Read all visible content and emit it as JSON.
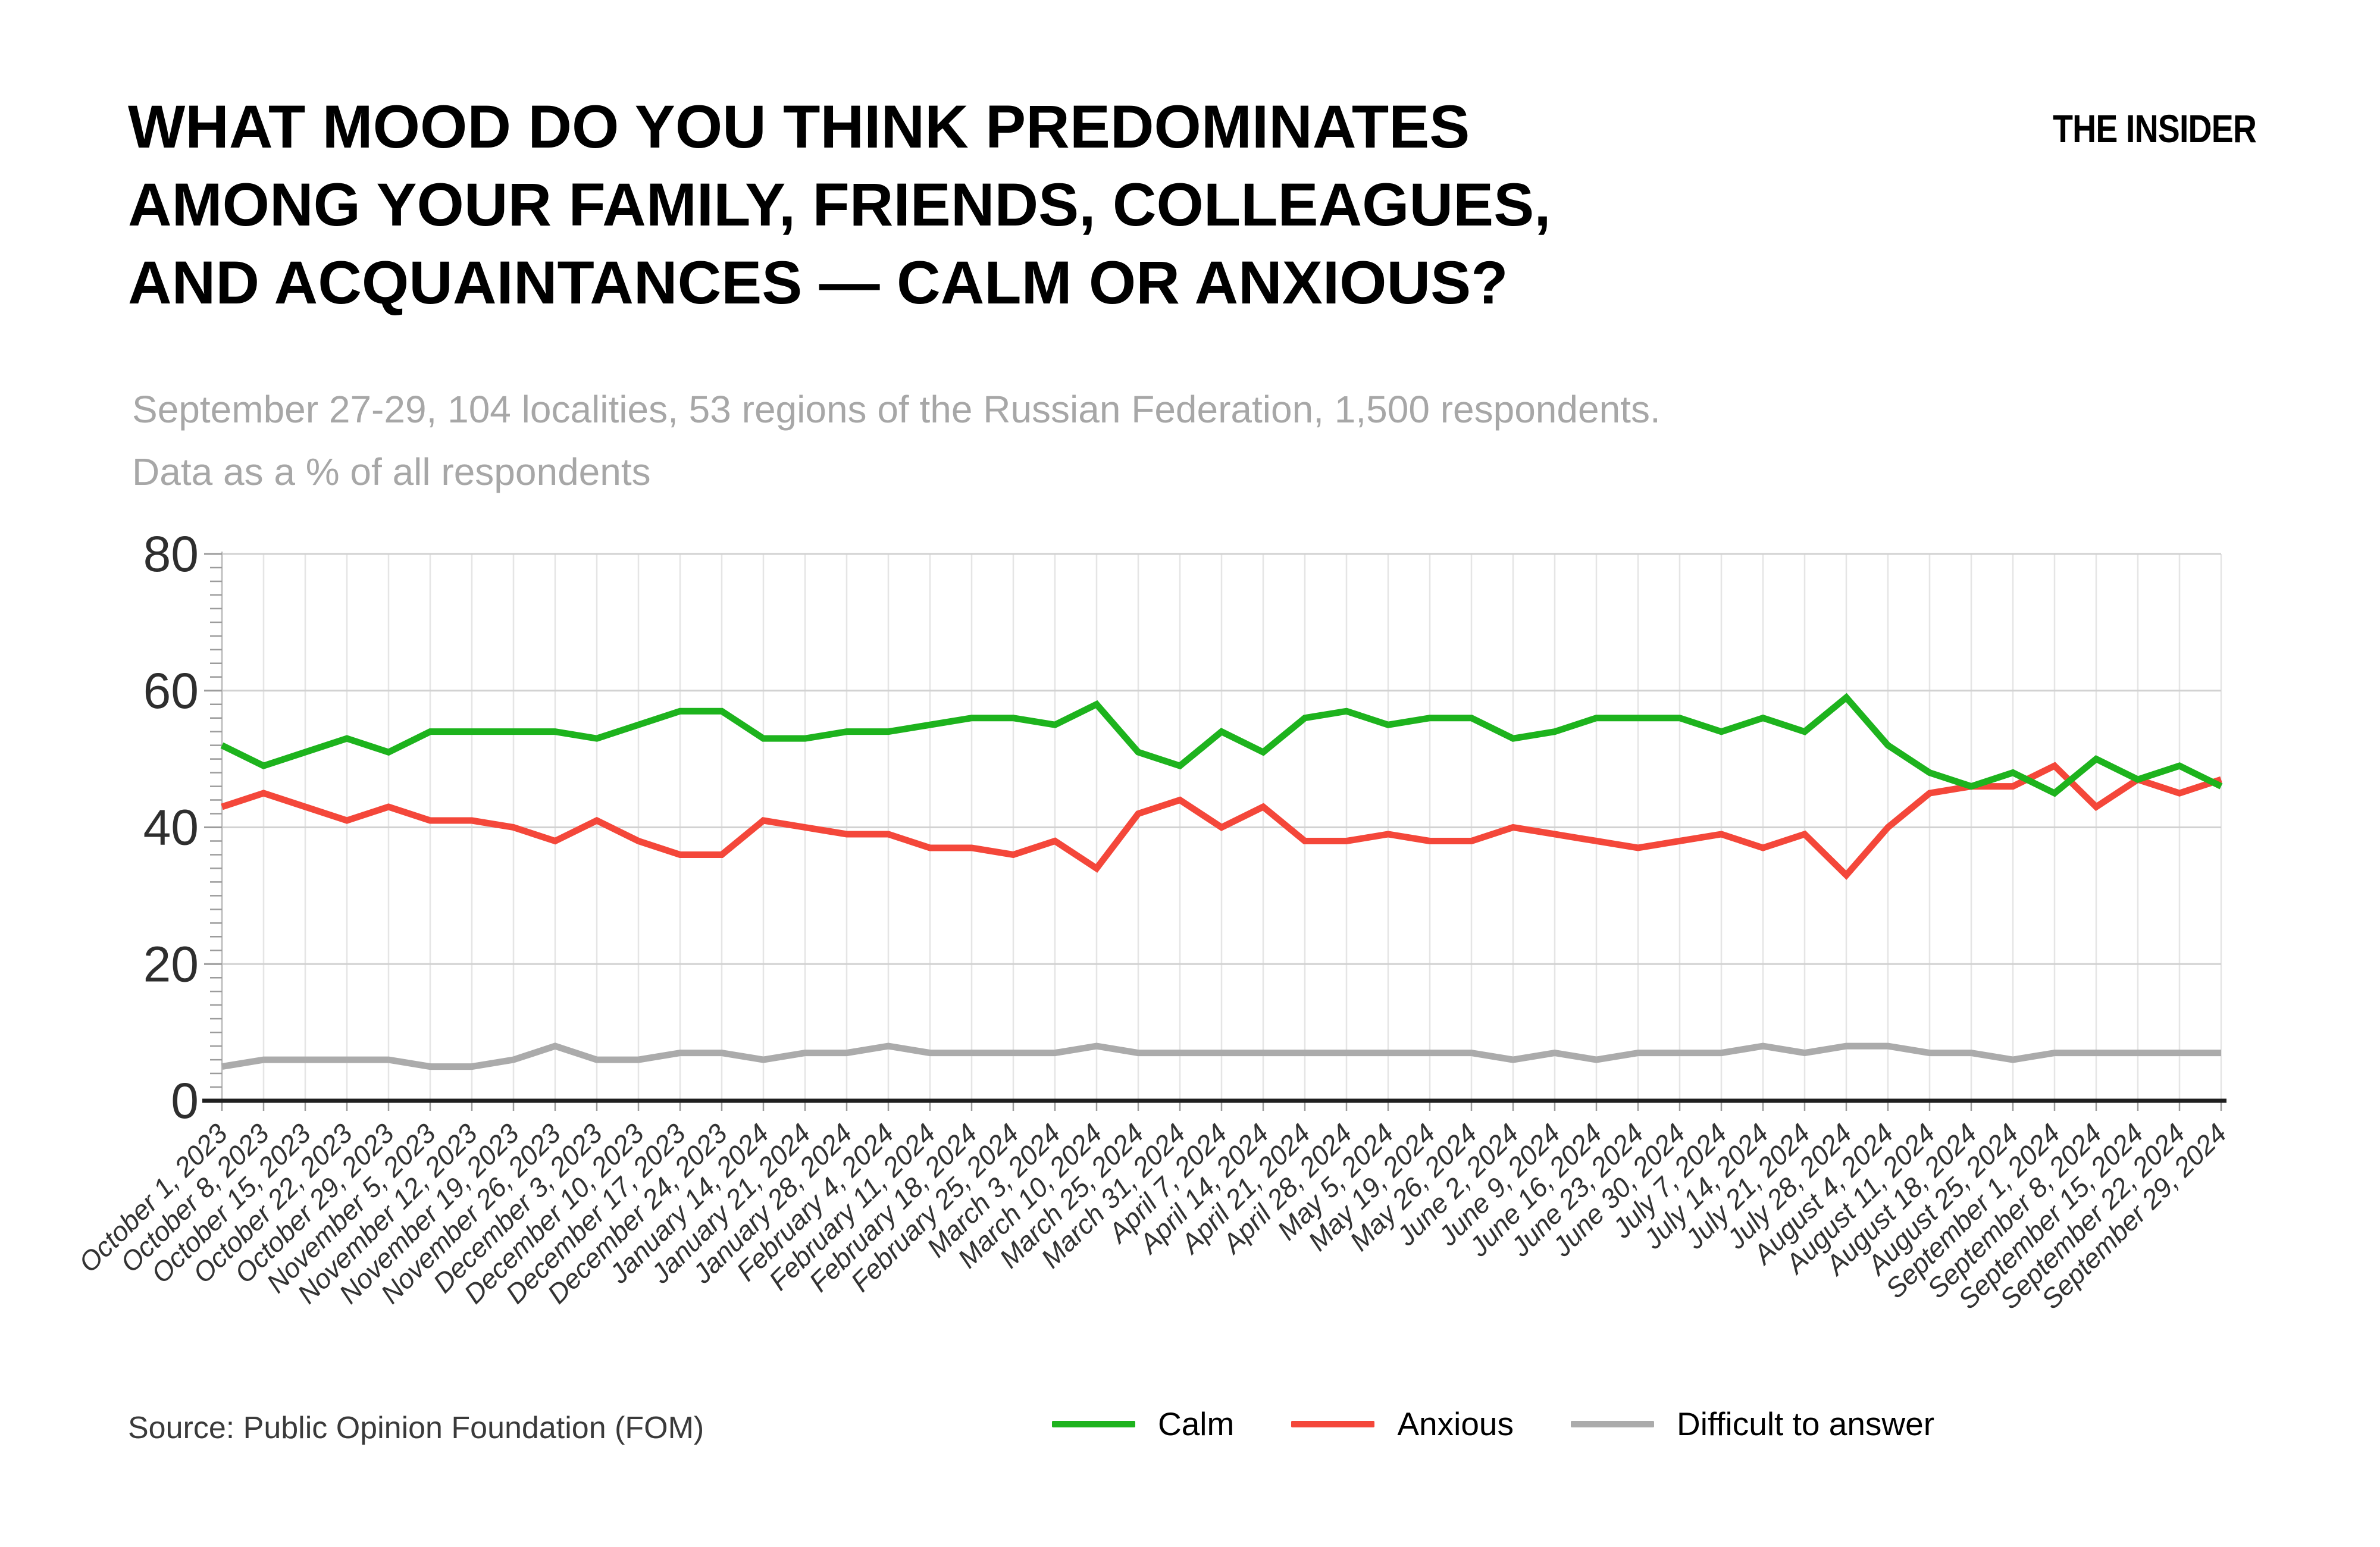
{
  "header": {
    "title": "WHAT MOOD DO YOU THINK PREDOMINATES\nAMONG YOUR FAMILY, FRIENDS, COLLEAGUES,\nAND ACQUAINTANCES — CALM OR ANXIOUS?",
    "logo": "THE INSIDER",
    "subtitle": "September 27-29, 104 localities, 53 regions of the Russian Federation, 1,500 respondents.\nData as a % of all respondents"
  },
  "source": {
    "label": "Source: Public Opinion Foundation (FOM)"
  },
  "legend": [
    {
      "label": "Calm"
    },
    {
      "label": "Anxious"
    },
    {
      "label": "Difficult to answer"
    }
  ],
  "chart_data": {
    "type": "line",
    "title": "",
    "xlabel": "",
    "ylabel": "",
    "ylim": [
      0,
      80
    ],
    "yticks": [
      0,
      20,
      40,
      60,
      80
    ],
    "y_minor_tick_step": 2,
    "grid": true,
    "legend_position": "bottom",
    "categories": [
      "October 1, 2023",
      "October 8, 2023",
      "October 15, 2023",
      "October 22, 2023",
      "October 29, 2023",
      "November 5, 2023",
      "November 12, 2023",
      "November 19, 2023",
      "November 26, 2023",
      "December 3, 2023",
      "December 10, 2023",
      "December 17, 2023",
      "December 24, 2023",
      "January 14, 2024",
      "January 21, 2024",
      "January 28, 2024",
      "February 4, 2024",
      "February 11, 2024",
      "February 18, 2024",
      "February 25, 2024",
      "March 3, 2024",
      "March 10, 2024",
      "March 25, 2024",
      "March 31, 2024",
      "April 7, 2024",
      "April 14, 2024",
      "April 21, 2024",
      "April 28, 2024",
      "May 5, 2024",
      "May 19, 2024",
      "May 26, 2024",
      "June 2, 2024",
      "June 9, 2024",
      "June 16, 2024",
      "June 23, 2024",
      "June 30, 2024",
      "July 7, 2024",
      "July 14, 2024",
      "July 21, 2024",
      "July 28, 2024",
      "August 4, 2024",
      "August 11, 2024",
      "August 18, 2024",
      "August 25, 2024",
      "September 1, 2024",
      "September 8, 2024",
      "September 15, 2024",
      "September 22, 2024",
      "September 29, 2024"
    ],
    "series": [
      {
        "name": "Calm",
        "color": "#1db31d",
        "values": [
          52,
          49,
          51,
          53,
          51,
          54,
          54,
          54,
          54,
          53,
          55,
          57,
          57,
          53,
          53,
          54,
          54,
          55,
          56,
          56,
          55,
          58,
          51,
          49,
          54,
          51,
          56,
          57,
          55,
          56,
          56,
          53,
          54,
          56,
          56,
          56,
          54,
          56,
          54,
          59,
          52,
          48,
          46,
          48,
          45,
          50,
          47,
          49,
          46
        ]
      },
      {
        "name": "Anxious",
        "color": "#f4473a",
        "values": [
          43,
          45,
          43,
          41,
          43,
          41,
          41,
          40,
          38,
          41,
          38,
          36,
          36,
          41,
          40,
          39,
          39,
          37,
          37,
          36,
          38,
          34,
          42,
          44,
          40,
          43,
          38,
          38,
          39,
          38,
          38,
          40,
          39,
          38,
          37,
          38,
          39,
          37,
          39,
          33,
          40,
          45,
          46,
          46,
          49,
          43,
          47,
          45,
          47
        ]
      },
      {
        "name": "Difficult to answer",
        "color": "#ababab",
        "values": [
          5,
          6,
          6,
          6,
          6,
          5,
          5,
          6,
          8,
          6,
          6,
          7,
          7,
          6,
          7,
          7,
          8,
          7,
          7,
          7,
          7,
          8,
          7,
          7,
          7,
          7,
          7,
          7,
          7,
          7,
          7,
          6,
          7,
          6,
          7,
          7,
          7,
          8,
          7,
          8,
          8,
          7,
          7,
          6,
          7,
          7,
          7,
          7,
          7
        ]
      }
    ]
  }
}
